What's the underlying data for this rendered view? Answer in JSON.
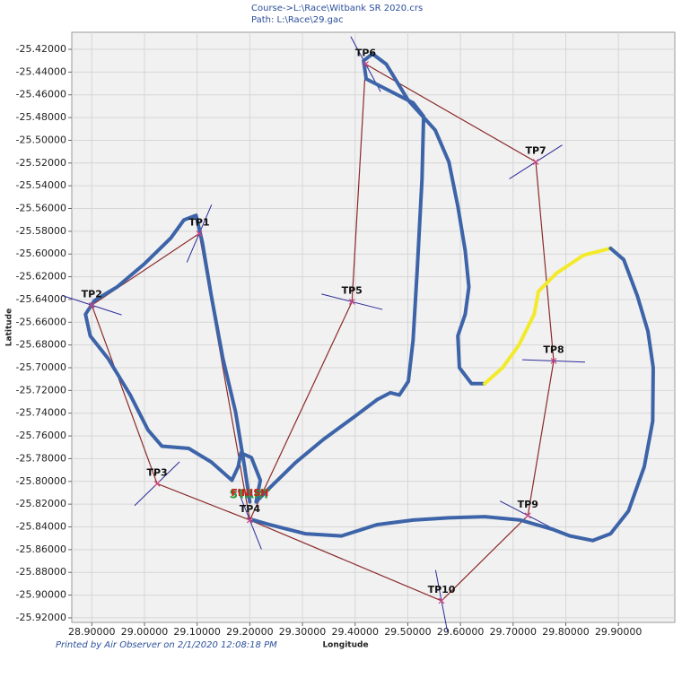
{
  "chart_data": {
    "type": "line",
    "title": "Course->L:\\Race\\Witbank SR 2020.crs",
    "subtitle": "Path: L:\\Race\\29.gac",
    "footer": "Printed by Air Observer on 2/1/2020 12:08:18 PM",
    "xlabel": "Longitude",
    "ylabel": "Latitude",
    "xlim": [
      28.862,
      30.007
    ],
    "ylim": [
      -25.405,
      -25.924
    ],
    "grid": true,
    "xticks": [
      {
        "value": 28.9,
        "label": "28.90000"
      },
      {
        "value": 29.0,
        "label": "29.00000"
      },
      {
        "value": 29.1,
        "label": "29.10000"
      },
      {
        "value": 29.2,
        "label": "29.20000"
      },
      {
        "value": 29.3,
        "label": "29.30000"
      },
      {
        "value": 29.4,
        "label": "29.40000"
      },
      {
        "value": 29.5,
        "label": "29.50000"
      },
      {
        "value": 29.6,
        "label": "29.60000"
      },
      {
        "value": 29.7,
        "label": "29.70000"
      },
      {
        "value": 29.8,
        "label": "29.80000"
      },
      {
        "value": 29.9,
        "label": "29.90000"
      }
    ],
    "yticks": [
      {
        "value": -25.42,
        "label": "-25.42000"
      },
      {
        "value": -25.44,
        "label": "-25.44000"
      },
      {
        "value": -25.46,
        "label": "-25.46000"
      },
      {
        "value": -25.48,
        "label": "-25.48000"
      },
      {
        "value": -25.5,
        "label": "-25.50000"
      },
      {
        "value": -25.52,
        "label": "-25.52000"
      },
      {
        "value": -25.54,
        "label": "-25.54000"
      },
      {
        "value": -25.56,
        "label": "-25.56000"
      },
      {
        "value": -25.58,
        "label": "-25.58000"
      },
      {
        "value": -25.6,
        "label": "-25.60000"
      },
      {
        "value": -25.62,
        "label": "-25.62000"
      },
      {
        "value": -25.64,
        "label": "-25.64000"
      },
      {
        "value": -25.66,
        "label": "-25.66000"
      },
      {
        "value": -25.68,
        "label": "-25.68000"
      },
      {
        "value": -25.7,
        "label": "-25.70000"
      },
      {
        "value": -25.72,
        "label": "-25.72000"
      },
      {
        "value": -25.74,
        "label": "-25.74000"
      },
      {
        "value": -25.76,
        "label": "-25.76000"
      },
      {
        "value": -25.78,
        "label": "-25.78000"
      },
      {
        "value": -25.8,
        "label": "-25.80000"
      },
      {
        "value": -25.82,
        "label": "-25.82000"
      },
      {
        "value": -25.84,
        "label": "-25.84000"
      },
      {
        "value": -25.86,
        "label": "-25.86000"
      },
      {
        "value": -25.88,
        "label": "-25.88000"
      },
      {
        "value": -25.9,
        "label": "-25.90000"
      },
      {
        "value": -25.92,
        "label": "-25.92000"
      }
    ],
    "series": [
      {
        "color": "#3d64a8",
        "x": [
          29.2,
          29.19,
          29.173,
          29.149,
          29.127,
          29.11,
          29.098,
          29.075,
          29.05,
          28.999,
          28.948,
          28.905,
          28.888,
          28.897,
          28.931,
          28.973,
          29.007,
          29.033,
          29.084,
          29.127,
          29.166,
          29.178,
          29.183,
          29.203,
          29.22,
          29.212,
          29.237,
          29.288,
          29.34,
          29.399,
          29.442,
          29.467,
          29.484,
          29.501,
          29.51,
          29.518,
          29.527,
          29.53,
          29.51,
          29.459,
          29.421,
          29.416,
          29.433,
          29.459,
          29.501,
          29.552,
          29.578,
          29.595,
          29.609,
          29.616,
          29.609,
          29.595,
          29.598,
          29.621,
          29.646
        ],
        "values": [
          -25.818,
          -25.787,
          -25.739,
          -25.692,
          -25.637,
          -25.59,
          -25.566,
          -25.57,
          -25.586,
          -25.609,
          -25.629,
          -25.641,
          -25.653,
          -25.672,
          -25.692,
          -25.724,
          -25.755,
          -25.769,
          -25.771,
          -25.783,
          -25.799,
          -25.787,
          -25.775,
          -25.779,
          -25.799,
          -25.818,
          -25.806,
          -25.783,
          -25.763,
          -25.743,
          -25.728,
          -25.722,
          -25.724,
          -25.712,
          -25.676,
          -25.613,
          -25.534,
          -25.479,
          -25.467,
          -25.455,
          -25.446,
          -25.43,
          -25.424,
          -25.433,
          -25.465,
          -25.491,
          -25.519,
          -25.558,
          -25.597,
          -25.629,
          -25.653,
          -25.672,
          -25.7,
          -25.714,
          -25.714
        ]
      },
      {
        "color": "#f2ea2a",
        "x": [
          29.646,
          29.68,
          29.711,
          29.74,
          29.748,
          29.782,
          29.834,
          29.885
        ],
        "values": [
          -25.714,
          -25.7,
          -25.68,
          -25.653,
          -25.633,
          -25.617,
          -25.601,
          -25.595
        ]
      },
      {
        "color": "#3d64a8",
        "x": [
          29.885,
          29.91,
          29.936,
          29.956,
          29.966,
          29.965,
          29.949,
          29.919,
          29.885,
          29.851,
          29.808,
          29.774,
          29.714,
          29.646,
          29.578,
          29.51,
          29.442,
          29.374,
          29.305,
          29.237,
          29.207
        ],
        "values": [
          -25.595,
          -25.605,
          -25.637,
          -25.668,
          -25.7,
          -25.747,
          -25.787,
          -25.826,
          -25.846,
          -25.852,
          -25.848,
          -25.842,
          -25.834,
          -25.831,
          -25.832,
          -25.834,
          -25.838,
          -25.848,
          -25.846,
          -25.838,
          -25.834
        ]
      }
    ],
    "course_color": "#8b2a2a",
    "start_index": 3,
    "start_label": "START",
    "finish_label": "FINISH",
    "turnpoints": [
      {
        "name": "TP1",
        "lon": 29.104,
        "lat": -25.582
      },
      {
        "name": "TP2",
        "lon": 28.9,
        "lat": -25.645
      },
      {
        "name": "TP3",
        "lon": 29.024,
        "lat": -25.802
      },
      {
        "name": "TP4",
        "lon": 29.2,
        "lat": -25.834
      },
      {
        "name": "TP5",
        "lon": 29.394,
        "lat": -25.642
      },
      {
        "name": "TP6",
        "lon": 29.42,
        "lat": -25.433
      },
      {
        "name": "TP7",
        "lon": 29.743,
        "lat": -25.519
      },
      {
        "name": "TP8",
        "lon": 29.777,
        "lat": -25.694
      },
      {
        "name": "TP9",
        "lon": 29.728,
        "lat": -25.83
      },
      {
        "name": "TP10",
        "lon": 29.564,
        "lat": -25.905
      }
    ]
  }
}
